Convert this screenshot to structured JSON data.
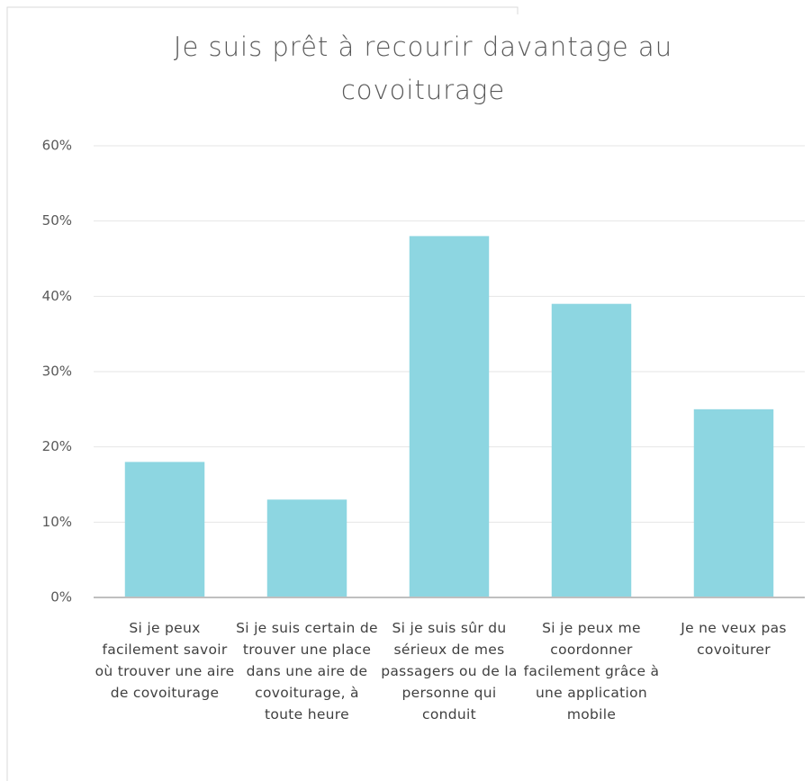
{
  "chart_data": {
    "type": "bar",
    "title": "Je suis prêt à recourir davantage au covoiturage",
    "categories": [
      "Si je peux facilement savoir où trouver une aire de covoiturage",
      "Si je suis certain de trouver une place dans une aire de covoiturage, à toute heure",
      "Si je suis sûr du sérieux de mes passagers ou de la personne qui conduit",
      "Si je peux me coordonner facilement grâce à une application mobile",
      "Je ne veux pas covoiturer"
    ],
    "values": [
      18,
      13,
      48,
      39,
      25
    ],
    "color": "#8dd6e1",
    "ylim": [
      0,
      60
    ],
    "yticks": [
      {
        "value": 0,
        "label": "0%"
      },
      {
        "value": 10,
        "label": "10%"
      },
      {
        "value": 20,
        "label": "20%"
      },
      {
        "value": 30,
        "label": "30%"
      },
      {
        "value": 40,
        "label": "40%"
      },
      {
        "value": 50,
        "label": "50%"
      },
      {
        "value": 60,
        "label": "60%"
      }
    ],
    "grid": true
  }
}
